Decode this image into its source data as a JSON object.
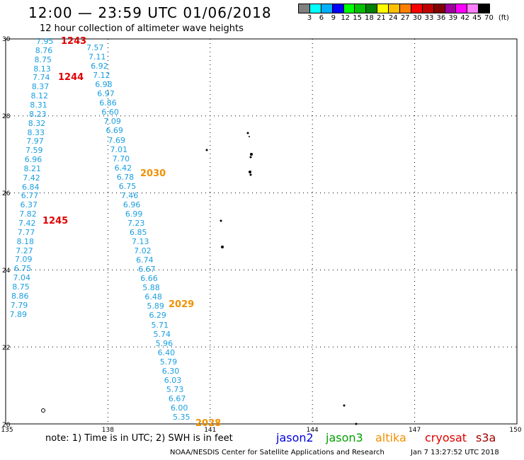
{
  "header": {
    "title": "12:00 — 23:59 UTC 01/06/2018",
    "subtitle": "12 hour collection of altimeter wave heights"
  },
  "legend": {
    "unit": "(ft)",
    "colors": [
      "#808080",
      "#00ffff",
      "#00b0ff",
      "#0000ff",
      "#00ff00",
      "#00c000",
      "#008000",
      "#ffff00",
      "#ffc000",
      "#ff8000",
      "#ff0000",
      "#c00000",
      "#800000",
      "#a000a0",
      "#ff00ff",
      "#ff80ff",
      "#000000"
    ],
    "labels": [
      "3",
      "6",
      "9",
      "12",
      "15",
      "18",
      "21",
      "24",
      "27",
      "30",
      "33",
      "36",
      "39",
      "42",
      "45",
      "70"
    ]
  },
  "axes": {
    "x_ticks": [
      "135",
      "138",
      "141",
      "144",
      "147",
      "150"
    ],
    "y_ticks": [
      "30",
      "28",
      "26",
      "24",
      "22",
      "20"
    ]
  },
  "track_a": [
    "7.95",
    "8.76",
    "8.75",
    "8.13",
    "7.74",
    "8.37",
    "8.12",
    "8.31",
    "8.23",
    "8.32",
    "8.33",
    "7.97",
    "7.59",
    "6.96",
    "8.21",
    "7.42",
    "6.84",
    "6.77",
    "6.37",
    "7.82",
    "7.42",
    "7.77",
    "8.18",
    "7.27",
    "7.09",
    "6.75",
    "7.04",
    "8.75",
    "8.86",
    "7.79",
    "7.89"
  ],
  "track_b": [
    "7.57",
    "7.11",
    "6.92",
    "7.12",
    "6.98",
    "6.97",
    "6.86",
    "6.60",
    "7.09",
    "6.69",
    "7.69",
    "7.01",
    "7.70",
    "6.42",
    "6.78",
    "6.75",
    "7.46",
    "6.96",
    "6.99",
    "7.23",
    "6.85",
    "7.13",
    "7.02",
    "6.74",
    "6.67",
    "6.66",
    "5.88",
    "6.48",
    "5.89",
    "6.29",
    "5.71",
    "5.74",
    "5.96",
    "6.40",
    "5.79",
    "6.30",
    "6.03",
    "5.73",
    "6.67",
    "6.00",
    "5.35"
  ],
  "time_labels": [
    {
      "text": "1243",
      "color": "#e00000"
    },
    {
      "text": "1244",
      "color": "#e00000"
    },
    {
      "text": "1245",
      "color": "#e00000"
    },
    {
      "text": "2030",
      "color": "#f09000"
    },
    {
      "text": "2029",
      "color": "#f09000"
    },
    {
      "text": "2028",
      "color": "#f09000"
    }
  ],
  "footer": {
    "note": "note: 1) Time is in UTC; 2) SWH is in feet",
    "missions": [
      {
        "name": "jason2",
        "color": "#0000e0"
      },
      {
        "name": "jason3",
        "color": "#00a000"
      },
      {
        "name": "altika",
        "color": "#f09000"
      },
      {
        "name": "cryosat",
        "color": "#e00000"
      },
      {
        "name": "s3a",
        "color": "#a00000"
      }
    ],
    "credit": "NOAA/NESDIS Center for Satellite Applications and Research",
    "timestamp": "Jan  7 13:27:52 UTC 2018"
  }
}
